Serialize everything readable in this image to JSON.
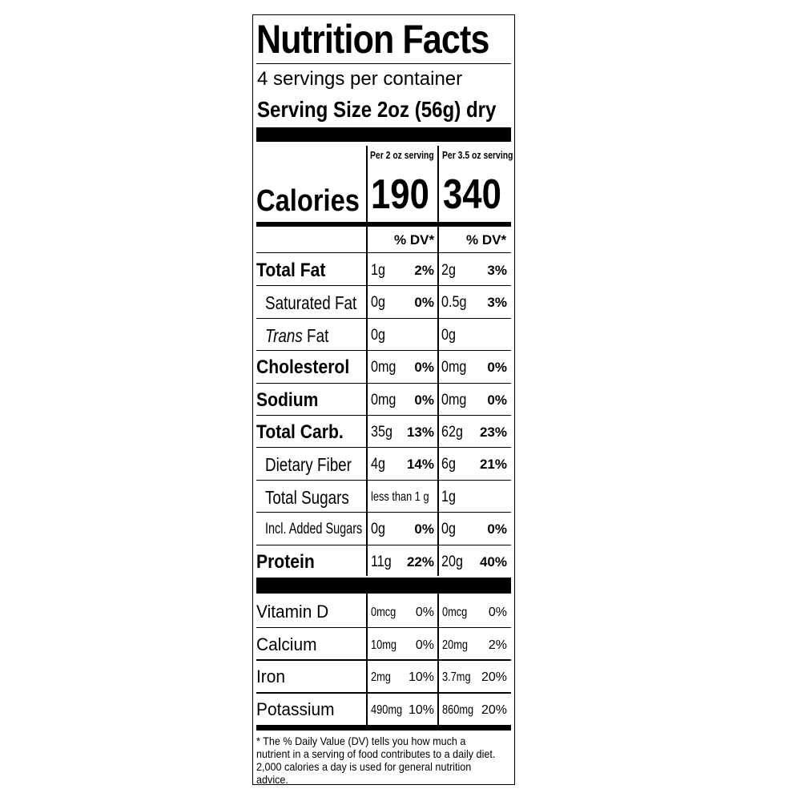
{
  "label": {
    "title": "Nutrition Facts",
    "servings_per_container": "4 servings per container",
    "serving_size": "Serving Size 2oz (56g) dry",
    "col1_header": "Per 2 oz serving",
    "col2_header": "Per 3.5 oz serving",
    "calories_label": "Calories",
    "calories_col1": "190",
    "calories_col2": "340",
    "dv_header_col1": "% DV*",
    "dv_header_col2": "% DV*",
    "nutrients": [
      {
        "name": "Total Fat",
        "style": "main",
        "italic_prefix": "",
        "amt1": "1g",
        "dv1": "2%",
        "amt2": "2g",
        "dv2": "3%"
      },
      {
        "name": "Saturated Fat",
        "style": "sub",
        "italic_prefix": "",
        "amt1": "0g",
        "dv1": "0%",
        "amt2": "0.5g",
        "dv2": "3%"
      },
      {
        "name": " Fat",
        "style": "sub",
        "italic_prefix": "Trans",
        "amt1": "0g",
        "dv1": "",
        "amt2": "0g",
        "dv2": ""
      },
      {
        "name": "Cholesterol",
        "style": "main",
        "italic_prefix": "",
        "amt1": "0mg",
        "dv1": "0%",
        "amt2": "0mg",
        "dv2": "0%"
      },
      {
        "name": "Sodium",
        "style": "main",
        "italic_prefix": "",
        "amt1": "0mg",
        "dv1": "0%",
        "amt2": "0mg",
        "dv2": "0%"
      },
      {
        "name": "Total Carb.",
        "style": "main",
        "italic_prefix": "",
        "amt1": "35g",
        "dv1": "13%",
        "amt2": "62g",
        "dv2": "23%"
      },
      {
        "name": "Dietary Fiber",
        "style": "sub",
        "italic_prefix": "",
        "amt1": "4g",
        "dv1": "14%",
        "amt2": "6g",
        "dv2": "21%"
      },
      {
        "name": "Total Sugars",
        "style": "sub",
        "italic_prefix": "",
        "amt1": "less than 1 g",
        "dv1": "",
        "amt2": "1g",
        "dv2": ""
      },
      {
        "name": "Incl. Added Sugars",
        "style": "sub small",
        "italic_prefix": "",
        "amt1": "0g",
        "dv1": "0%",
        "amt2": "0g",
        "dv2": "0%"
      },
      {
        "name": "Protein",
        "style": "main",
        "italic_prefix": "",
        "amt1": "11g",
        "dv1": "22%",
        "amt2": "20g",
        "dv2": "40%"
      }
    ],
    "vitamins": [
      {
        "name": "Vitamin D",
        "amt1": "0mcg",
        "dv1": "0%",
        "amt2": "0mcg",
        "dv2": "0%"
      },
      {
        "name": "Calcium",
        "amt1": "10mg",
        "dv1": "0%",
        "amt2": "20mg",
        "dv2": "2%"
      },
      {
        "name": "Iron",
        "amt1": "2mg",
        "dv1": "10%",
        "amt2": "3.7mg",
        "dv2": "20%"
      },
      {
        "name": "Potassium",
        "amt1": "490mg",
        "dv1": "10%",
        "amt2": "860mg",
        "dv2": "20%"
      }
    ],
    "footnote": "* The % Daily Value (DV) tells you how much a nutrient in a serving of food contributes to a daily diet. 2,000 calories a day is used for general nutrition advice."
  }
}
